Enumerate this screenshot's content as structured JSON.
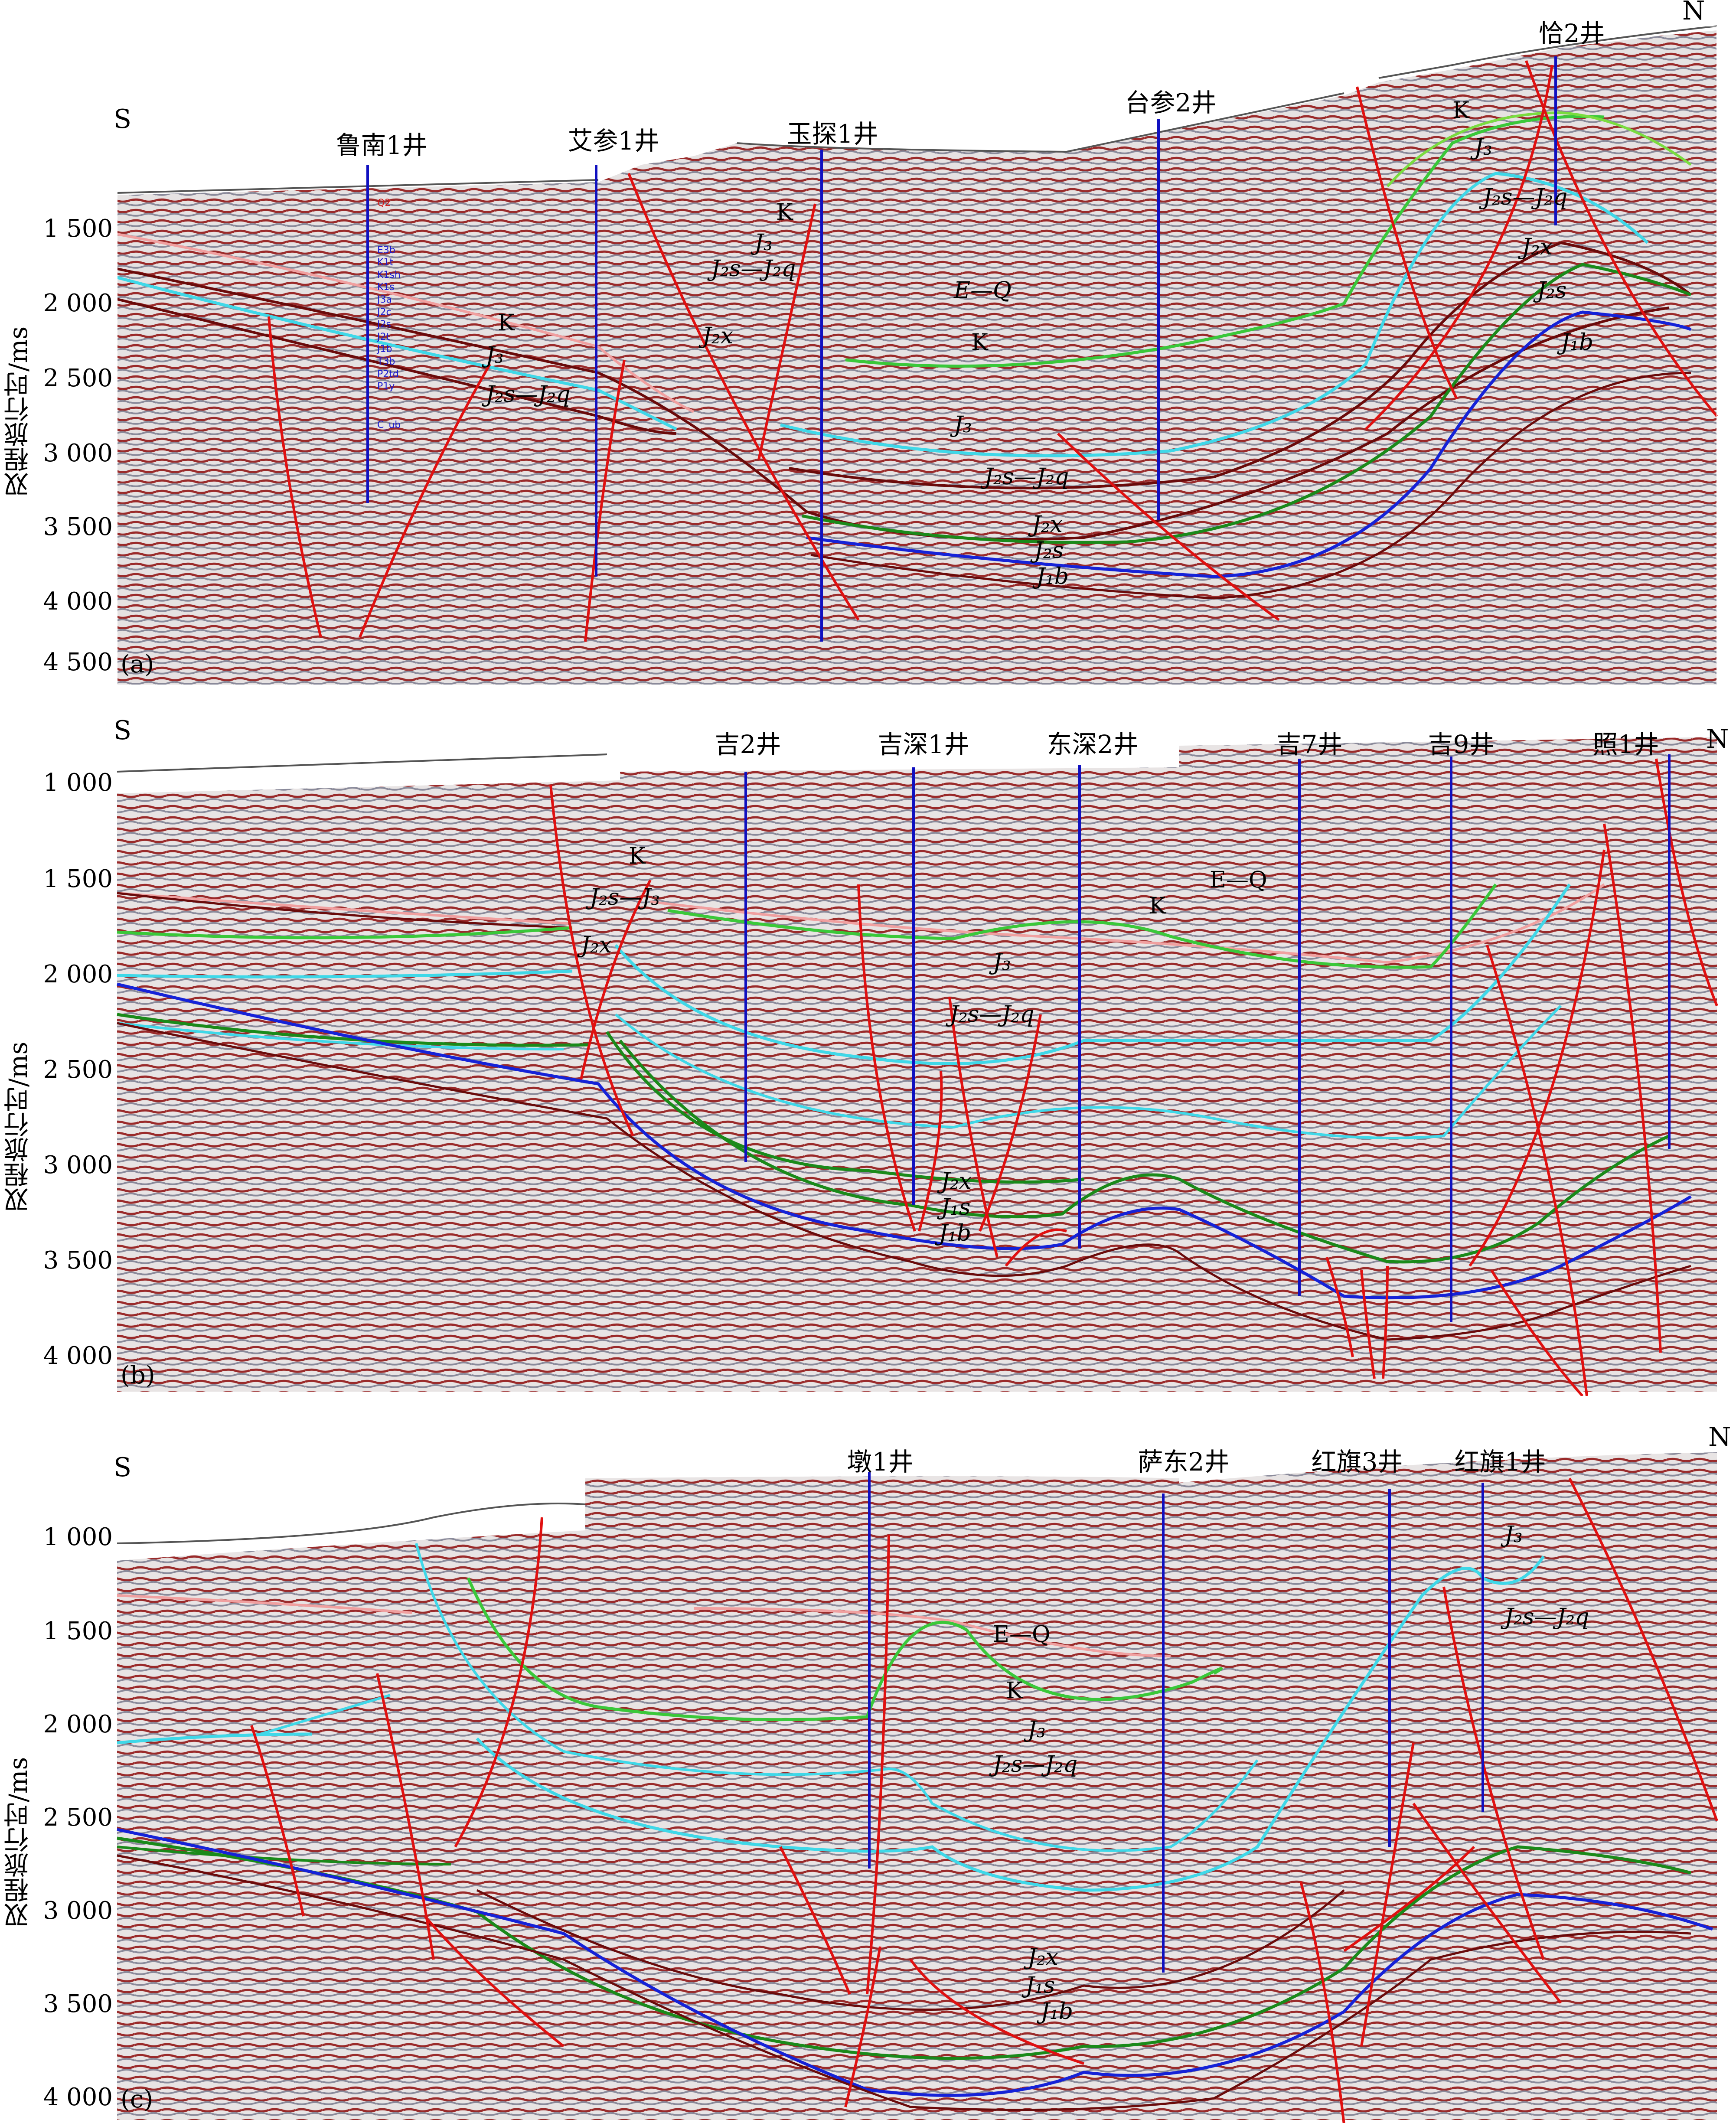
{
  "y_axis_label": "双程旅行时/ms",
  "colors": {
    "fault": "#e01010",
    "well": "#1010c0",
    "horizon_green": "#3ac83a",
    "horizon_cyan": "#3fd8e8",
    "horizon_blue": "#1522d8",
    "horizon_darkred": "#6a0a0a",
    "horizon_pink": "#f0a0a0",
    "seismic_red": "#9a2a2a",
    "seismic_gray": "#8a8a9a"
  },
  "panels": [
    {
      "label": "(a)",
      "south": "S",
      "north": "N",
      "ticks": [
        "1 500",
        "2 000",
        "2 500",
        "3 000",
        "3 500",
        "4 000",
        "4 500"
      ],
      "wells": [
        "鲁南1井",
        "艾参1井",
        "玉探1井",
        "台参2井",
        "恰2井"
      ],
      "well_log": [
        "Q2",
        "E3b",
        "K1t",
        "K1sh",
        "K1s",
        "J3a",
        "J2c",
        "J2s",
        "J2t",
        "J1b",
        "T3b",
        "P2td",
        "P1y",
        "C_ub"
      ],
      "units": [
        "K",
        "J₃",
        "J₂s—J₂q",
        "J₂x",
        "E—Q",
        "K",
        "J₃",
        "J₂s—J₂q",
        "J₂x",
        "J₂s",
        "J₁b",
        "K",
        "J₃",
        "J₂s—J₂q",
        "J₂x",
        "J₂s",
        "J₁b",
        "K",
        "J₃",
        "J₂s—J₂q"
      ]
    },
    {
      "label": "(b)",
      "south": "S",
      "north": "N",
      "ticks": [
        "1 000",
        "1 500",
        "2 000",
        "2 500",
        "3 000",
        "3 500",
        "4 000"
      ],
      "wells": [
        "吉2井",
        "吉深1井",
        "东深2井",
        "吉7井",
        "吉9井",
        "照1井"
      ],
      "units": [
        "K",
        "J₂s—J₃",
        "J₂x",
        "J₃",
        "J₂s—J₂q",
        "J₂x",
        "J₁s",
        "J₁b",
        "K",
        "E—Q"
      ]
    },
    {
      "label": "(c)",
      "south": "S",
      "north": "N",
      "ticks": [
        "1 000",
        "1 500",
        "2 000",
        "2 500",
        "3 000",
        "3 500",
        "4 000"
      ],
      "wells": [
        "墩1井",
        "萨东2井",
        "红旗3井",
        "红旗1井"
      ],
      "units": [
        "E—Q",
        "K",
        "J₃",
        "J₂s—J₂q",
        "J₂x",
        "J₁s",
        "J₁b",
        "J₃",
        "J₂s—J₂q"
      ]
    }
  ]
}
